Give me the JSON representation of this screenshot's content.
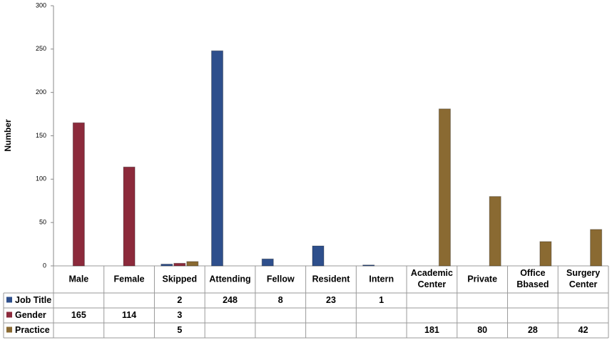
{
  "chart_data": {
    "type": "bar",
    "y_label": "Number",
    "categories": [
      "Male",
      "Female",
      "Skipped",
      "Attending",
      "Fellow",
      "Resident",
      "Intern",
      "Academic Center",
      "Private",
      "Office Bbased",
      "Surgery Center"
    ],
    "series": [
      {
        "name": "Job Title",
        "color": "#2e4f8c",
        "values": [
          null,
          null,
          2,
          248,
          8,
          23,
          1,
          null,
          null,
          null,
          null
        ]
      },
      {
        "name": "Gender",
        "color": "#8c2a3b",
        "values": [
          165,
          114,
          3,
          null,
          null,
          null,
          null,
          null,
          null,
          null,
          null
        ]
      },
      {
        "name": "Practice",
        "color": "#8a6a32",
        "values": [
          null,
          null,
          5,
          null,
          null,
          null,
          null,
          181,
          80,
          28,
          42
        ]
      }
    ],
    "ylim": [
      0,
      300
    ],
    "yticks": [
      0,
      50,
      100,
      150,
      200,
      250,
      300
    ],
    "grid": false
  }
}
